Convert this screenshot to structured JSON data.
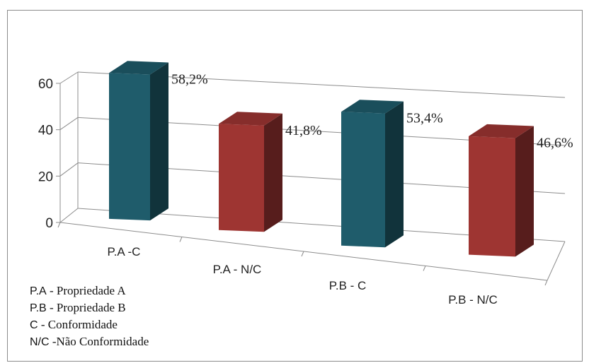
{
  "chart_data": {
    "type": "bar",
    "title": "",
    "categories": [
      "P.A -C",
      "P.A - N/C",
      "P.B - C",
      "P.B - N/C"
    ],
    "series": [
      {
        "values": [
          58.2,
          41.8,
          53.4,
          46.6
        ],
        "data_labels": [
          "58,2%",
          "41,8%",
          "53,4%",
          "46,6%"
        ]
      }
    ],
    "bar_colors": [
      "#1f5c6b",
      "#9e3532",
      "#1f5c6b",
      "#9e3532"
    ],
    "y_ticks": [
      "0",
      "20",
      "40",
      "60"
    ],
    "ylim": [
      0,
      60
    ],
    "xlabel": "",
    "ylabel": "",
    "grid": true,
    "style": "3d-perspective"
  },
  "notes": [
    {
      "abbr": "P.A",
      "text": " - Propriedade A"
    },
    {
      "abbr": "P.B",
      "text": " - Propriedade B"
    },
    {
      "abbr": "C",
      "text": " - Conformidade"
    },
    {
      "abbr": "N/C",
      "text": " -Não Conformidade"
    }
  ]
}
